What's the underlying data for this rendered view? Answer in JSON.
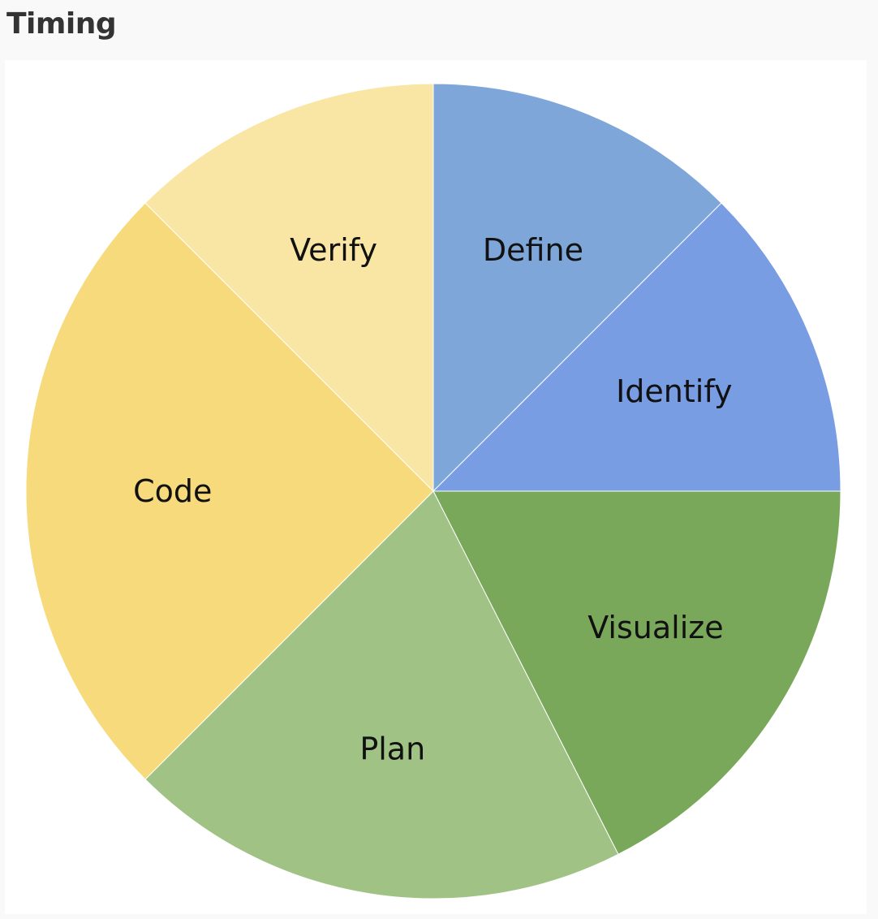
{
  "page": {
    "title": "Timing"
  },
  "chart_data": {
    "type": "pie",
    "title": "Timing",
    "start": "12 o'clock",
    "direction": "clockwise",
    "legend": "none",
    "labels_inside": true,
    "slices": [
      {
        "label": "Define",
        "value": 12.5,
        "color": "#7ea6d8"
      },
      {
        "label": "Identify",
        "value": 12.5,
        "color": "#799de3"
      },
      {
        "label": "Visualize",
        "value": 17.5,
        "color": "#79a85b"
      },
      {
        "label": "Plan",
        "value": 20.0,
        "color": "#a0c385"
      },
      {
        "label": "Code",
        "value": 25.0,
        "color": "#f7da7b"
      },
      {
        "label": "Verify",
        "value": 12.5,
        "color": "#fae6a4"
      }
    ]
  }
}
